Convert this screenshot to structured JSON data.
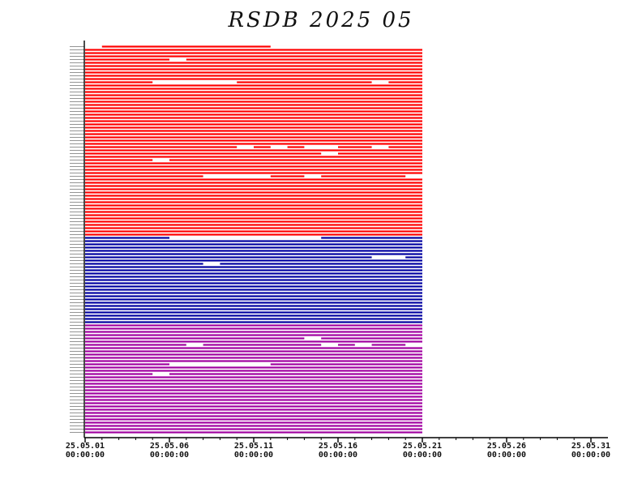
{
  "chart_data": {
    "type": "timeline",
    "title": "RSDB 2025 05",
    "x_ticks": [
      {
        "date": "25.05.01",
        "time": "00:00:00"
      },
      {
        "date": "25.05.06",
        "time": "00:00:00"
      },
      {
        "date": "25.05.11",
        "time": "00:00:00"
      },
      {
        "date": "25.05.16",
        "time": "00:00:00"
      },
      {
        "date": "25.05.21",
        "time": "00:00:00"
      },
      {
        "date": "25.05.26",
        "time": "00:00:00"
      },
      {
        "date": "25.05.31",
        "time": "00:00:00"
      }
    ],
    "xlim": [
      "2025-05-01",
      "2025-05-31"
    ],
    "data_coverage_end": "2025-05-21",
    "groups": [
      {
        "color": "#ff0000",
        "station_count": 59
      },
      {
        "color": "#0000a0",
        "station_count": 27
      },
      {
        "color": "#a000a0",
        "station_count": 34
      }
    ],
    "gaps": [
      {
        "station": 1,
        "start": "2025-05-01",
        "end": "2025-05-02"
      },
      {
        "station": 1,
        "start": "2025-05-12",
        "end": "2025-05-21"
      },
      {
        "station": 5,
        "start": "2025-05-06",
        "end": "2025-05-07"
      },
      {
        "station": 12,
        "start": "2025-05-05",
        "end": "2025-05-10"
      },
      {
        "station": 12,
        "start": "2025-05-18",
        "end": "2025-05-19"
      },
      {
        "station": 32,
        "start": "2025-05-10",
        "end": "2025-05-11"
      },
      {
        "station": 32,
        "start": "2025-05-12",
        "end": "2025-05-13"
      },
      {
        "station": 32,
        "start": "2025-05-14",
        "end": "2025-05-16"
      },
      {
        "station": 32,
        "start": "2025-05-18",
        "end": "2025-05-19"
      },
      {
        "station": 34,
        "start": "2025-05-15",
        "end": "2025-05-16"
      },
      {
        "station": 36,
        "start": "2025-05-05",
        "end": "2025-05-06"
      },
      {
        "station": 41,
        "start": "2025-05-08",
        "end": "2025-05-12"
      },
      {
        "station": 41,
        "start": "2025-05-14",
        "end": "2025-05-15"
      },
      {
        "station": 41,
        "start": "2025-05-20",
        "end": "2025-05-21"
      },
      {
        "station": 60,
        "start": "2025-05-06",
        "end": "2025-05-15"
      },
      {
        "station": 66,
        "start": "2025-05-18",
        "end": "2025-05-20"
      },
      {
        "station": 68,
        "start": "2025-05-08",
        "end": "2025-05-09"
      },
      {
        "station": 91,
        "start": "2025-05-14",
        "end": "2025-05-15"
      },
      {
        "station": 93,
        "start": "2025-05-07",
        "end": "2025-05-08"
      },
      {
        "station": 93,
        "start": "2025-05-15",
        "end": "2025-05-16"
      },
      {
        "station": 93,
        "start": "2025-05-17",
        "end": "2025-05-18"
      },
      {
        "station": 93,
        "start": "2025-05-20",
        "end": "2025-05-21"
      },
      {
        "station": 99,
        "start": "2025-05-06",
        "end": "2025-05-12"
      },
      {
        "station": 102,
        "start": "2025-05-05",
        "end": "2025-05-06"
      }
    ]
  }
}
